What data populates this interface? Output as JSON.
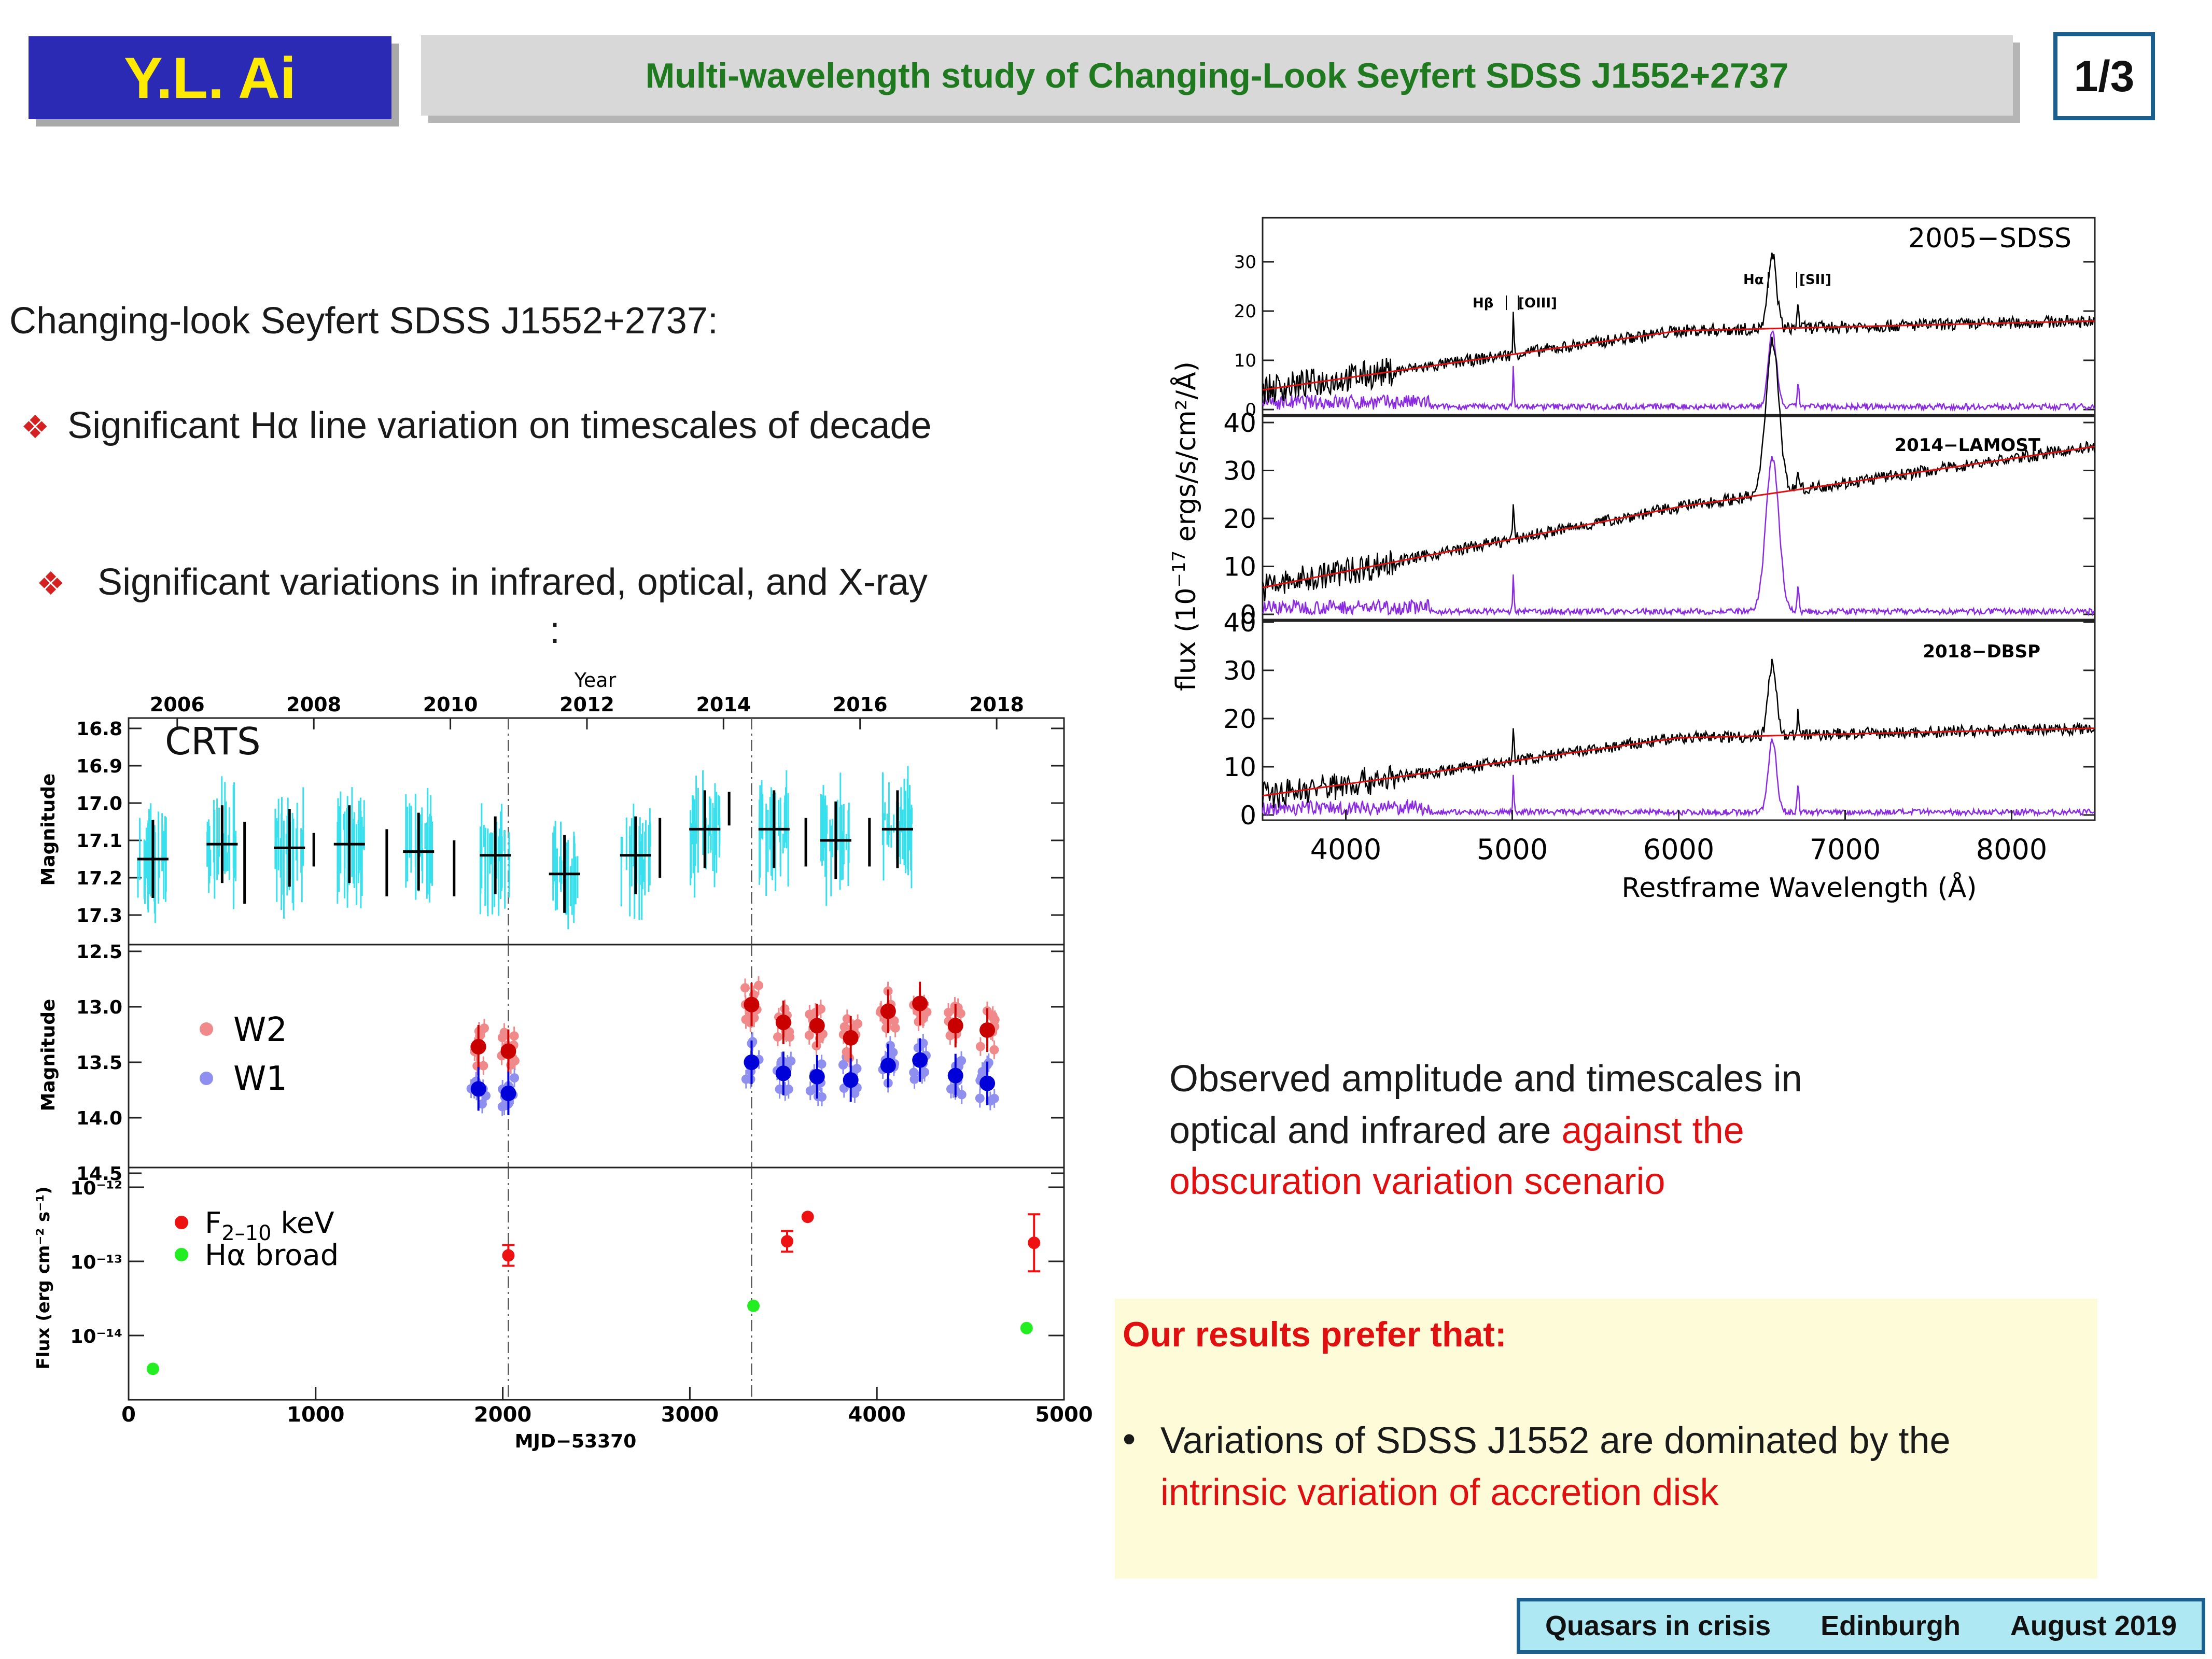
{
  "header": {
    "author": "Y.L. Ai",
    "title": "Multi-wavelength study of Changing-Look Seyfert SDSS J1552+2737",
    "page": "1/3"
  },
  "left_text": {
    "heading": "Changing-look Seyfert SDSS J1552+2737:",
    "bullet1": "Significant Hα line variation on timescales of decade",
    "bullet2": "Significant variations in infrared, optical, and X-ray",
    "colon": ":"
  },
  "right_text": {
    "obs_line1": "Observed amplitude and timescales  in",
    "obs_line2a": "optical and infrared are ",
    "obs_line2b": "against the",
    "obs_line3": "obscuration variation scenario"
  },
  "conclusion": {
    "heading": "Our results prefer that:",
    "bullet_a": "Variations of SDSS J1552 are dominated by the",
    "bullet_b": "intrinsic variation of accretion disk"
  },
  "footer": {
    "event": "Quasars in crisis",
    "place": "Edinburgh",
    "date": "August 2019"
  },
  "colors": {
    "header_blue": "#2a2ab4",
    "author_yellow": "#ffea00",
    "title_green": "#1f7a1f",
    "accent_red": "#e01010",
    "footer_cyan": "#aee8f2"
  },
  "chart_data": [
    {
      "type": "scatter",
      "panel": "CRTS",
      "label": "CRTS",
      "ylabel": "Magnitude",
      "top_axis_label": "Year",
      "top_ticks": [
        "2006",
        "2008",
        "2010",
        "2012",
        "2014",
        "2016",
        "2018"
      ],
      "y_ticks": [
        "16.8",
        "16.9",
        "17.0",
        "17.1",
        "17.2",
        "17.3"
      ],
      "ylim": [
        17.4,
        16.8
      ],
      "xlim": [
        0,
        5000
      ],
      "vlines_mjd": [
        2030,
        3330
      ],
      "binned": [
        {
          "x": 130,
          "y": 17.15
        },
        {
          "x": 500,
          "y": 17.11
        },
        {
          "x": 860,
          "y": 17.12
        },
        {
          "x": 1180,
          "y": 17.11
        },
        {
          "x": 1550,
          "y": 17.13
        },
        {
          "x": 1960,
          "y": 17.14
        },
        {
          "x": 2330,
          "y": 17.19
        },
        {
          "x": 2710,
          "y": 17.14
        },
        {
          "x": 3080,
          "y": 17.07
        },
        {
          "x": 3450,
          "y": 17.07
        },
        {
          "x": 3780,
          "y": 17.1
        },
        {
          "x": 4110,
          "y": 17.07
        }
      ],
      "lines": [
        {
          "x": 620,
          "y1": 17.05,
          "y2": 17.27
        },
        {
          "x": 990,
          "y1": 17.08,
          "y2": 17.17
        },
        {
          "x": 1380,
          "y1": 17.07,
          "y2": 17.25
        },
        {
          "x": 1740,
          "y1": 17.1,
          "y2": 17.25
        },
        {
          "x": 2840,
          "y1": 17.04,
          "y2": 17.2
        },
        {
          "x": 3210,
          "y1": 16.97,
          "y2": 17.06
        },
        {
          "x": 3620,
          "y1": 17.04,
          "y2": 17.17
        },
        {
          "x": 3960,
          "y1": 17.04,
          "y2": 17.17
        }
      ]
    },
    {
      "type": "scatter",
      "panel": "WISE",
      "ylabel": "Magnitude",
      "y_ticks": [
        "12.5",
        "13.0",
        "13.5",
        "14.0",
        "14.5"
      ],
      "ylim": [
        14.5,
        12.5
      ],
      "legend": [
        "W2",
        "W1"
      ],
      "series": [
        {
          "name": "W2",
          "color": "#c80000",
          "err": "#f08a8a",
          "points": [
            [
              1870,
              13.36
            ],
            [
              2030,
              13.4
            ],
            [
              3330,
              12.98
            ],
            [
              3500,
              13.14
            ],
            [
              3680,
              13.17
            ],
            [
              3860,
              13.28
            ],
            [
              4060,
              13.04
            ],
            [
              4230,
              12.97
            ],
            [
              4420,
              13.17
            ],
            [
              4590,
              13.21
            ]
          ]
        },
        {
          "name": "W1",
          "color": "#0000d8",
          "err": "#8f8ff0",
          "points": [
            [
              1870,
              13.74
            ],
            [
              2030,
              13.78
            ],
            [
              3330,
              13.5
            ],
            [
              3500,
              13.6
            ],
            [
              3680,
              13.63
            ],
            [
              3860,
              13.66
            ],
            [
              4060,
              13.53
            ],
            [
              4230,
              13.48
            ],
            [
              4420,
              13.62
            ],
            [
              4590,
              13.69
            ]
          ]
        }
      ]
    },
    {
      "type": "scatter",
      "panel": "Flux",
      "ylabel": "Flux (erg cm⁻² s⁻¹)",
      "xlabel": "MJD−53370",
      "x_ticks": [
        "0",
        "1000",
        "2000",
        "3000",
        "4000",
        "5000"
      ],
      "y_ticks": [
        "10⁻¹²",
        "10⁻¹³",
        "10⁻¹⁴"
      ],
      "ylim_log10": [
        -14.85,
        -11.85
      ],
      "legend": [
        "F2–10 keV",
        "Hα broad"
      ],
      "legend_main_1": "F",
      "legend_sub_1": "2–10",
      "legend_tail_1": " keV",
      "legend_main_2": "Hα  broad",
      "series": [
        {
          "name": "F2-10 keV",
          "color": "#ee1111",
          "points": [
            [
              2030,
              -12.92
            ],
            [
              3520,
              -12.73
            ],
            [
              3630,
              -12.4
            ],
            [
              4840,
              -12.75
            ]
          ]
        },
        {
          "name": "Halpha broad",
          "color": "#22ee22",
          "points": [
            [
              130,
              -14.45
            ],
            [
              3340,
              -13.6
            ],
            [
              4800,
              -13.9
            ]
          ]
        }
      ]
    },
    {
      "type": "line",
      "panel": "Spectra",
      "xlabel": "Restframe Wavelength (Å)",
      "ylabel_main": "flux  (10",
      "ylabel_exp": "−17",
      "ylabel_tail": " ergs/s/cm²/Å)",
      "x_ticks": [
        "4000",
        "5000",
        "6000",
        "7000",
        "8000"
      ],
      "xlim": [
        3500,
        8500
      ],
      "y_ticks": [
        "0",
        "10",
        "20",
        "30",
        "40"
      ],
      "subpanels": [
        {
          "label": "2005−SDSS",
          "peak": 25,
          "lines": [
            "Hβ",
            "[OIII]",
            "Hα",
            "[SII]"
          ]
        },
        {
          "label": "2014−LAMOST",
          "peak": 42
        },
        {
          "label": "2018−DBSP",
          "peak": 25
        }
      ]
    }
  ]
}
